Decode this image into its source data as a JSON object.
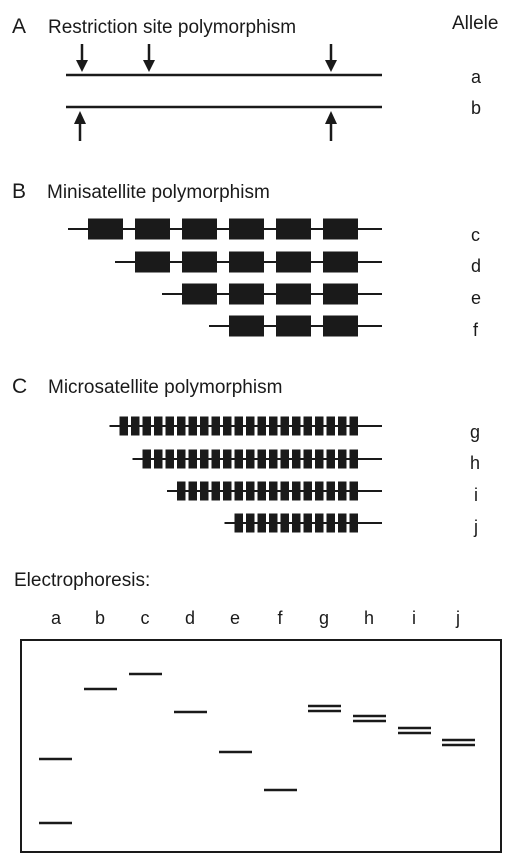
{
  "allele_header": "Allele",
  "sections": [
    {
      "letter": "A",
      "title": "Restriction site polymorphism",
      "alleles": [
        "a",
        "b"
      ]
    },
    {
      "letter": "B",
      "title": "Minisatellite polymorphism",
      "alleles": [
        "c",
        "d",
        "e",
        "f"
      ],
      "repeat_counts": [
        6,
        5,
        4,
        3
      ]
    },
    {
      "letter": "C",
      "title": "Microsatellite polymorphism",
      "alleles": [
        "g",
        "h",
        "i",
        "j"
      ],
      "repeat_counts": [
        21,
        19,
        16,
        11
      ]
    }
  ],
  "electrophoresis": {
    "title": "Electrophoresis:",
    "lanes": [
      "a",
      "b",
      "c",
      "d",
      "e",
      "f",
      "g",
      "h",
      "i",
      "j"
    ],
    "doublet_lanes": [
      "g",
      "h",
      "i",
      "j"
    ]
  }
}
